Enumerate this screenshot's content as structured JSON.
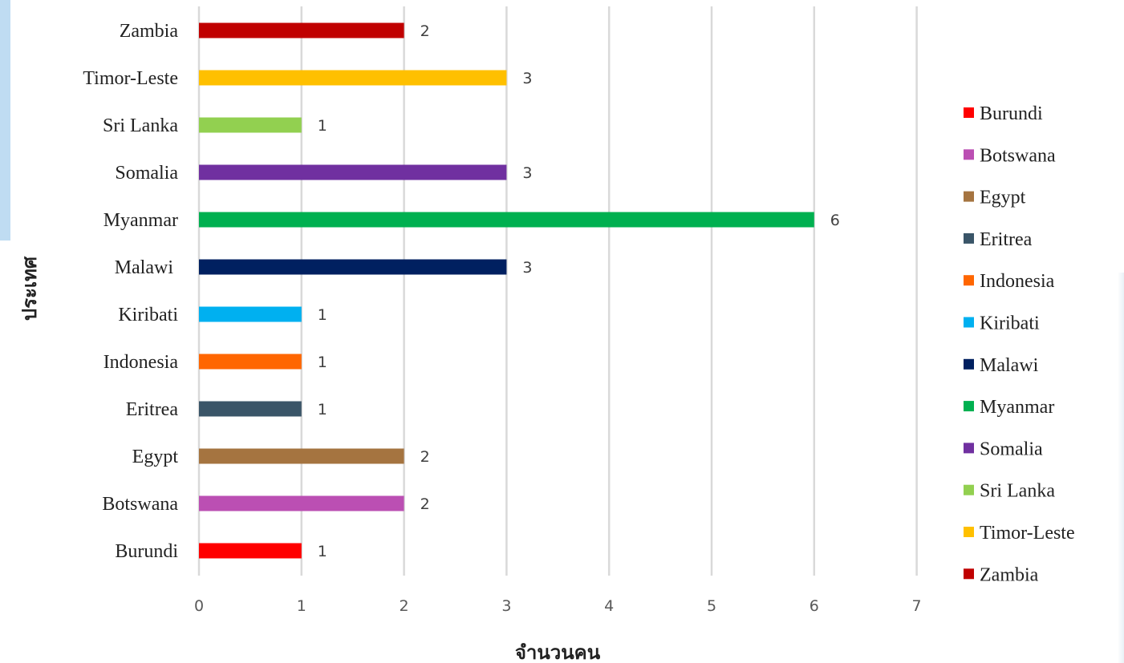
{
  "chart_data": {
    "type": "bar",
    "orientation": "horizontal",
    "title": "",
    "xlabel": "จำนวนคน",
    "ylabel": "ประเทศ",
    "xlim": [
      0,
      7
    ],
    "x_ticks": [
      "0",
      "1",
      "2",
      "3",
      "4",
      "5",
      "6",
      "7"
    ],
    "grid": "vertical",
    "legend_position": "right",
    "data_labels": true,
    "categories": [
      "Burundi",
      "Botswana",
      "Egypt",
      "Eritrea",
      "Indonesia",
      "Kiribati",
      "Malawi",
      "Myanmar",
      "Somalia",
      "Sri Lanka",
      "Timor-Leste",
      "Zambia"
    ],
    "category_labels": [
      "Burundi",
      "Botswana",
      "Egypt",
      "Eritrea",
      "Indonesia",
      "Kiribati",
      "Malawi ",
      "Myanmar",
      "Somalia",
      "Sri Lanka",
      "Timor-Leste",
      "Zambia"
    ],
    "values": [
      1,
      2,
      2,
      1,
      1,
      1,
      3,
      6,
      3,
      1,
      3,
      2
    ],
    "colors": [
      "#ff0000",
      "#bb4fb3",
      "#a57440",
      "#3a5568",
      "#ff6600",
      "#00b0f0",
      "#002060",
      "#00b050",
      "#7030a0",
      "#92d050",
      "#ffc000",
      "#c00000"
    ],
    "legend": [
      "Burundi",
      "Botswana",
      "Egypt",
      "Eritrea",
      "Indonesia",
      "Kiribati",
      "Malawi",
      "Myanmar",
      "Somalia",
      "Sri Lanka",
      "Timor-Leste",
      "Zambia"
    ]
  }
}
